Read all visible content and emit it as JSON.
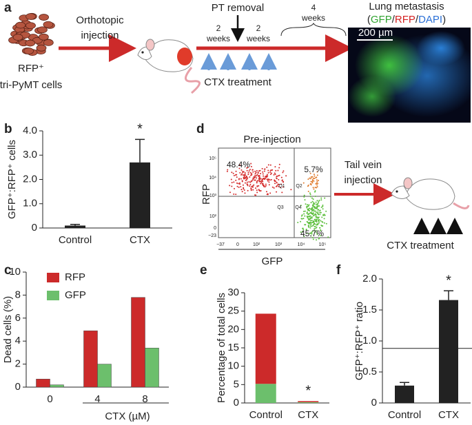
{
  "panel_labels": [
    "a",
    "b",
    "c",
    "d",
    "e",
    "f"
  ],
  "panel_a": {
    "cells_label": [
      "RFP⁺",
      "tri-PyMT cells"
    ],
    "injection": [
      "Orthotopic",
      "injection"
    ],
    "pt_removal": "PT removal",
    "period_1": [
      "2",
      "weeks"
    ],
    "period_2": [
      "2",
      "weeks"
    ],
    "period_3": [
      "4",
      "weeks"
    ],
    "treatment": "CTX treatment",
    "image_title": "Lung metastasis",
    "image_legend": [
      "(",
      "GFP",
      "/",
      "RFP",
      "/",
      "DAPI",
      ")"
    ],
    "scale_bar": "200 µm"
  },
  "panel_d": {
    "title": "Pre-injection",
    "xlabel": "GFP",
    "ylabel": "RFP",
    "xticks": [
      "−37",
      "0",
      "10²",
      "10³",
      "10⁴",
      "10⁵"
    ],
    "yticks": [
      "10⁵",
      "10⁴",
      "10³",
      "10²",
      "0",
      "−23"
    ],
    "quadrants": [
      "Q1",
      "Q2",
      "Q3",
      "Q4"
    ],
    "percentages": [
      "48.4%",
      "5.7%",
      "45.7%"
    ],
    "injection": [
      "Tail vein",
      "injection"
    ],
    "treatment": "CTX treatment"
  },
  "chart_data": [
    {
      "type": "bar",
      "ylabel": "GFP⁺:RFP⁺ cells",
      "categories": [
        "Control",
        "CTX"
      ],
      "values": [
        0.1,
        2.7
      ],
      "errors": [
        0.05,
        0.95
      ],
      "significance": [
        null,
        "*"
      ],
      "color": "#222222",
      "ylim": [
        0,
        4
      ],
      "yticks": [
        0,
        {
          "value": 1,
          "label": "1.0"
        },
        {
          "value": 2,
          "label": "2.0"
        },
        {
          "value": 3,
          "label": "3.0"
        },
        {
          "value": 4,
          "label": "4.0"
        }
      ]
    },
    {
      "type": "grouped_bar",
      "ylabel": "Dead cells (%)",
      "xlabel": "CTX (µM)",
      "categories": [
        "0",
        "4",
        "8"
      ],
      "series": [
        {
          "name": "RFP",
          "color": "#cc2a2a",
          "values": [
            0.7,
            4.9,
            7.8
          ]
        },
        {
          "name": "GFP",
          "color": "#6cbf6c",
          "values": [
            0.2,
            2.0,
            3.4
          ]
        }
      ],
      "legend": "upper-left",
      "ylim": [
        0,
        10
      ],
      "yticks": [
        0,
        2,
        4,
        6,
        8,
        10
      ]
    },
    {
      "type": "stacked_bar",
      "ylabel": "Percentage of total cells",
      "categories": [
        "Control",
        "CTX"
      ],
      "series": [
        {
          "color": "#6cbf6c",
          "values": [
            5.2,
            0.2
          ]
        },
        {
          "color": "#cc2a2a",
          "values": [
            19.1,
            0.3
          ]
        }
      ],
      "significance": [
        null,
        "*"
      ],
      "ylim": [
        0,
        30
      ],
      "yticks": [
        0,
        5,
        10,
        15,
        20,
        25,
        30
      ]
    },
    {
      "type": "bar",
      "ylabel": "GFP⁺:RFP⁺ ratio",
      "categories": [
        "Control",
        "CTX"
      ],
      "values": [
        0.28,
        1.66
      ],
      "errors": [
        0.05,
        0.15
      ],
      "significance": [
        null,
        "*"
      ],
      "color": "#222222",
      "reference_line": 0.88,
      "ylim": [
        0,
        2
      ],
      "yticks": [
        0,
        {
          "value": 0.5,
          "label": "0.5"
        },
        {
          "value": 1,
          "label": "1.0"
        },
        {
          "value": 1.5,
          "label": "1.5"
        },
        {
          "value": 2,
          "label": "2.0"
        }
      ]
    }
  ]
}
